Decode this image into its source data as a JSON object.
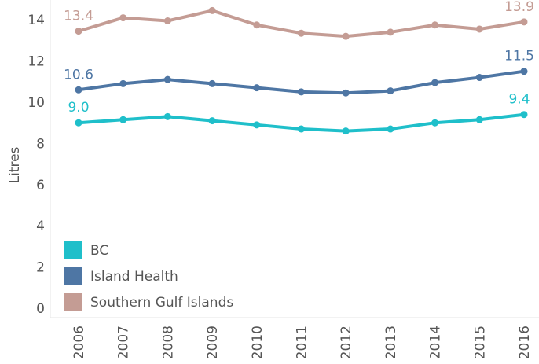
{
  "chart_data": {
    "type": "line",
    "ylabel": "Litres",
    "xlabel": "",
    "ylim": [
      0,
      15
    ],
    "yticks": [
      0,
      2,
      4,
      6,
      8,
      10,
      12,
      14
    ],
    "categories": [
      "2006",
      "2007",
      "2008",
      "2009",
      "2010",
      "2011",
      "2012",
      "2013",
      "2014",
      "2015",
      "2016"
    ],
    "series": [
      {
        "name": "BC",
        "color": "#1fbfca",
        "values": [
          9.0,
          9.15,
          9.3,
          9.1,
          8.9,
          8.7,
          8.6,
          8.7,
          9.0,
          9.15,
          9.4
        ],
        "labels": [
          "9.0",
          "9.4"
        ]
      },
      {
        "name": "Island Health",
        "color": "#4e76a4",
        "values": [
          10.6,
          10.9,
          11.1,
          10.9,
          10.7,
          10.5,
          10.45,
          10.55,
          10.95,
          11.2,
          11.5
        ],
        "labels": [
          "10.6",
          "11.5"
        ]
      },
      {
        "name": "Southern Gulf Islands",
        "color": "#c49c94",
        "values": [
          13.45,
          14.1,
          13.95,
          14.45,
          13.75,
          13.35,
          13.2,
          13.4,
          13.75,
          13.55,
          13.9
        ],
        "labels": [
          "13.4",
          "13.9"
        ]
      }
    ],
    "grid": false,
    "legend_position": "bottom-left"
  }
}
